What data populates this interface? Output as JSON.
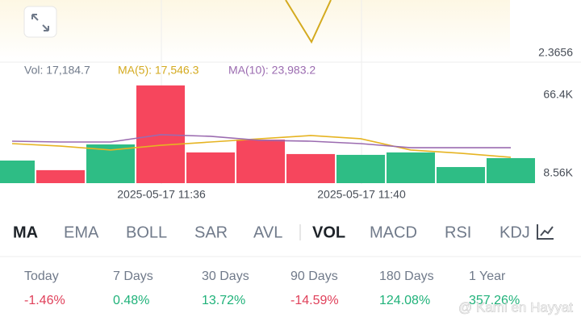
{
  "price_axis_label": "2.3656",
  "volume_chart": {
    "type": "bar",
    "legend": {
      "vol": "Vol: 17,184.7",
      "ma5": "MA(5): 17,546.3",
      "ma10": "MA(10): 23,983.2"
    },
    "values": [
      18100,
      11000,
      30000,
      73600,
      24100,
      33600,
      22900,
      22300,
      24100,
      13300,
      19900
    ],
    "colors": [
      "#2ebd85",
      "#f6465d",
      "#2ebd85",
      "#f6465d",
      "#f6465d",
      "#f6465d",
      "#f6465d",
      "#2ebd85",
      "#2ebd85",
      "#2ebd85",
      "#2ebd85"
    ],
    "series": [
      {
        "name": "MA(5)",
        "color": "#e6b422",
        "values": [
          30600,
          28800,
          25900,
          29400,
          31800,
          34200,
          36600,
          34200,
          25900,
          23500,
          20500
        ]
      },
      {
        "name": "MA(10)",
        "color": "#9b6bb0",
        "values": [
          32400,
          31800,
          31800,
          37200,
          36000,
          33000,
          32400,
          30600,
          27600,
          27600,
          27600
        ]
      }
    ],
    "ylim": [
      1400,
      77100
    ],
    "yticks": [
      {
        "value": 8560,
        "label": "8.56K"
      },
      {
        "value": 66400,
        "label": "66.4K"
      }
    ],
    "time_labels": [
      "2025-05-17 11:36",
      "2025-05-17 11:40"
    ]
  },
  "tabs": [
    "MA",
    "EMA",
    "BOLL",
    "SAR",
    "AVL",
    "VOL",
    "MACD",
    "RSI",
    "KDJ"
  ],
  "performance": [
    {
      "period": "Today",
      "change": "-1.46%",
      "color": "#e0405a"
    },
    {
      "period": "7 Days",
      "change": "0.48%",
      "color": "#20b27a"
    },
    {
      "period": "30 Days",
      "change": "13.72%",
      "color": "#20b27a"
    },
    {
      "period": "90 Days",
      "change": "-14.59%",
      "color": "#e0405a"
    },
    {
      "period": "180 Days",
      "change": "124.08%",
      "color": "#20b27a"
    },
    {
      "period": "1 Year",
      "change": "357.26%",
      "color": "#20b27a"
    }
  ],
  "watermark": "@ Kami en Hayyat"
}
